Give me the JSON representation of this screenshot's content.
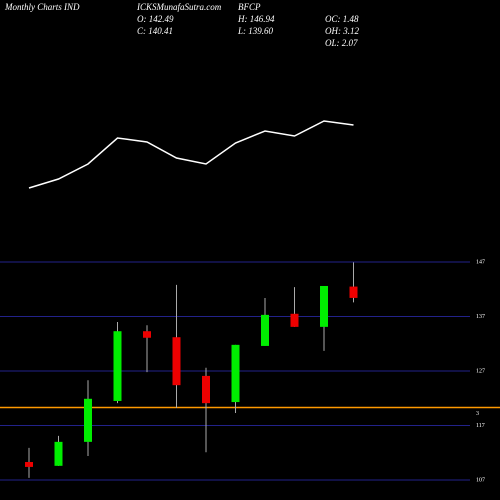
{
  "chart_data": {
    "type": "candlestick",
    "title": "Monthly Charts IND",
    "source": "ICKSMunafaSutra.com",
    "symbol": "BFCP",
    "annotations": [
      "O: 142.49",
      "H: 146.94",
      "OC: 1.48",
      "C: 140.41",
      "L: 139.60",
      "OH: 3.12",
      "OL: 2.07"
    ],
    "categories": [
      null,
      null,
      null,
      null,
      null,
      null,
      null,
      null,
      null,
      null,
      null,
      null
    ],
    "open": [
      110.3,
      109.6,
      114.0,
      121.5,
      134.3,
      133.2,
      126.1,
      121.3,
      131.6,
      137.5,
      135.1,
      142.49
    ],
    "high": [
      112.9,
      115.1,
      125.3,
      136.0,
      135.4,
      142.8,
      127.6,
      131.8,
      140.4,
      142.4,
      142.6,
      146.94
    ],
    "low": [
      107.4,
      109.6,
      111.4,
      121.1,
      126.8,
      120.2,
      112.1,
      119.3,
      131.6,
      135.1,
      130.7,
      139.6
    ],
    "close": [
      109.4,
      114.0,
      121.9,
      134.3,
      133.1,
      124.4,
      121.1,
      131.8,
      137.3,
      135.1,
      142.6,
      140.41
    ],
    "up_color": "#00ee00",
    "down_color": "#ee0000",
    "ylim": [
      106.5,
      148.5
    ],
    "yticks": [
      107,
      117,
      127,
      137,
      147
    ],
    "grid": true,
    "hline": {
      "value": 120.3,
      "label": "3",
      "color": "#ff9900"
    },
    "line": {
      "color": "#ffffff",
      "values": [
        12,
        21,
        36,
        62,
        58,
        42,
        36,
        57,
        69,
        64,
        79,
        75
      ],
      "y2lim": [
        0,
        100
      ]
    }
  }
}
